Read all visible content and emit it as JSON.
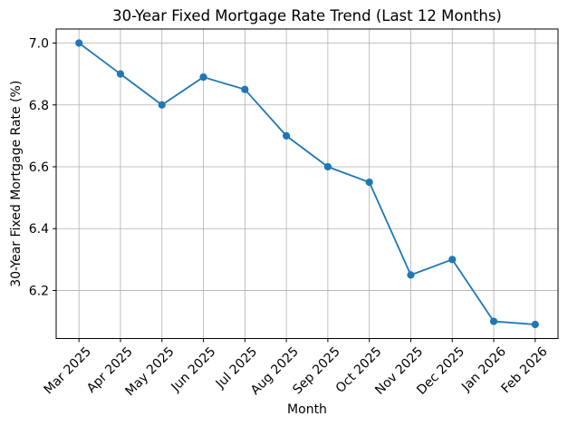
{
  "chart_data": {
    "type": "line",
    "title": "30-Year Fixed Mortgage Rate Trend (Last 12 Months)",
    "xlabel": "Month",
    "ylabel": "30-Year Fixed Mortgage Rate (%)",
    "categories": [
      "Mar 2025",
      "Apr 2025",
      "May 2025",
      "Jun 2025",
      "Jul 2025",
      "Aug 2025",
      "Sep 2025",
      "Oct 2025",
      "Nov 2025",
      "Dec 2025",
      "Jan 2026",
      "Feb 2026"
    ],
    "values": [
      7.0,
      6.9,
      6.8,
      6.89,
      6.85,
      6.7,
      6.6,
      6.55,
      6.25,
      6.3,
      6.1,
      6.09
    ],
    "yticks": [
      6.2,
      6.4,
      6.6,
      6.8,
      7.0
    ],
    "ytick_labels": [
      "6.2",
      "6.4",
      "6.6",
      "6.8",
      "7.0"
    ],
    "ylim": [
      6.0445,
      7.0455
    ],
    "grid": true,
    "legend": "none",
    "x_tick_rotation": 45,
    "colors": {
      "line": "#1f77b4",
      "grid": "#b0b0b0",
      "axis": "#000000",
      "text": "#000000",
      "background": "#ffffff"
    }
  }
}
